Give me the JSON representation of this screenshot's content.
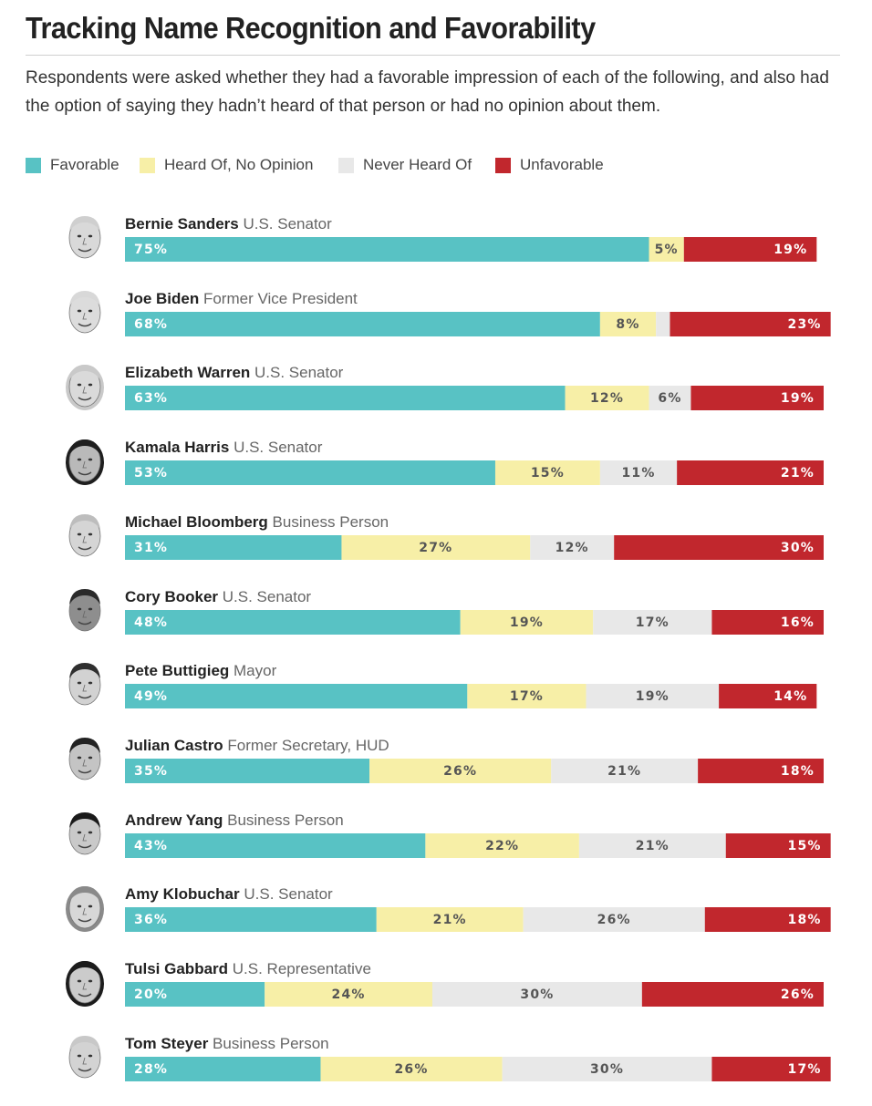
{
  "header": {
    "title": "Tracking Name Recognition and Favorability",
    "subtitle": "Respondents were asked whether they had a favorable impression of each of the following, and also had the option of saying they hadn’t heard of that person or had no opinion about them."
  },
  "colors": {
    "favorable": "#58c2c4",
    "heard_of": "#f7efa7",
    "never_heard": "#e8e8e8",
    "unfavorable": "#c1272d",
    "label_light": "#ffffff",
    "label_dark": "#555555"
  },
  "chart_data": {
    "type": "bar",
    "orientation": "horizontal",
    "stacked": true,
    "title": "Tracking Name Recognition and Favorability",
    "legend": [
      {
        "key": "favorable",
        "label": "Favorable"
      },
      {
        "key": "heard_of",
        "label": "Heard Of, No Opinion"
      },
      {
        "key": "never_heard",
        "label": "Never Heard Of"
      },
      {
        "key": "unfavorable",
        "label": "Unfavorable"
      }
    ],
    "legend_position": "top-left",
    "xlim": [
      0,
      100
    ],
    "rows": [
      {
        "name": "Bernie Sanders",
        "role": "U.S. Senator",
        "favorable": 75,
        "heard_of": 5,
        "never_heard": 0,
        "unfavorable": 19,
        "labels": {
          "favorable": "75%",
          "heard_of": "5%",
          "never_heard": "",
          "unfavorable": "19%"
        }
      },
      {
        "name": "Joe Biden",
        "role": "Former Vice President",
        "favorable": 68,
        "heard_of": 8,
        "never_heard": 2,
        "unfavorable": 23,
        "labels": {
          "favorable": "68%",
          "heard_of": "8%",
          "never_heard": "",
          "unfavorable": "23%"
        }
      },
      {
        "name": "Elizabeth Warren",
        "role": "U.S. Senator",
        "favorable": 63,
        "heard_of": 12,
        "never_heard": 6,
        "unfavorable": 19,
        "labels": {
          "favorable": "63%",
          "heard_of": "12%",
          "never_heard": "6%",
          "unfavorable": "19%"
        }
      },
      {
        "name": "Kamala Harris",
        "role": "U.S. Senator",
        "favorable": 53,
        "heard_of": 15,
        "never_heard": 11,
        "unfavorable": 21,
        "labels": {
          "favorable": "53%",
          "heard_of": "15%",
          "never_heard": "11%",
          "unfavorable": "21%"
        }
      },
      {
        "name": "Michael Bloomberg",
        "role": "Business Person",
        "favorable": 31,
        "heard_of": 27,
        "never_heard": 12,
        "unfavorable": 30,
        "labels": {
          "favorable": "31%",
          "heard_of": "27%",
          "never_heard": "12%",
          "unfavorable": "30%"
        }
      },
      {
        "name": "Cory Booker",
        "role": "U.S. Senator",
        "favorable": 48,
        "heard_of": 19,
        "never_heard": 17,
        "unfavorable": 16,
        "labels": {
          "favorable": "48%",
          "heard_of": "19%",
          "never_heard": "17%",
          "unfavorable": "16%"
        }
      },
      {
        "name": "Pete Buttigieg",
        "role": "Mayor",
        "favorable": 49,
        "heard_of": 17,
        "never_heard": 19,
        "unfavorable": 14,
        "labels": {
          "favorable": "49%",
          "heard_of": "17%",
          "never_heard": "19%",
          "unfavorable": "14%"
        }
      },
      {
        "name": "Julian Castro",
        "role": "Former Secretary, HUD",
        "favorable": 35,
        "heard_of": 26,
        "never_heard": 21,
        "unfavorable": 18,
        "labels": {
          "favorable": "35%",
          "heard_of": "26%",
          "never_heard": "21%",
          "unfavorable": "18%"
        }
      },
      {
        "name": "Andrew Yang",
        "role": "Business Person",
        "favorable": 43,
        "heard_of": 22,
        "never_heard": 21,
        "unfavorable": 15,
        "labels": {
          "favorable": "43%",
          "heard_of": "22%",
          "never_heard": "21%",
          "unfavorable": "15%"
        }
      },
      {
        "name": "Amy Klobuchar",
        "role": "U.S. Senator",
        "favorable": 36,
        "heard_of": 21,
        "never_heard": 26,
        "unfavorable": 18,
        "labels": {
          "favorable": "36%",
          "heard_of": "21%",
          "never_heard": "26%",
          "unfavorable": "18%"
        }
      },
      {
        "name": "Tulsi Gabbard",
        "role": "U.S. Representative",
        "favorable": 20,
        "heard_of": 24,
        "never_heard": 30,
        "unfavorable": 26,
        "labels": {
          "favorable": "20%",
          "heard_of": "24%",
          "never_heard": "30%",
          "unfavorable": "26%"
        }
      },
      {
        "name": "Tom Steyer",
        "role": "Business Person",
        "favorable": 28,
        "heard_of": 26,
        "never_heard": 30,
        "unfavorable": 17,
        "labels": {
          "favorable": "28%",
          "heard_of": "26%",
          "never_heard": "30%",
          "unfavorable": "17%"
        }
      }
    ]
  }
}
